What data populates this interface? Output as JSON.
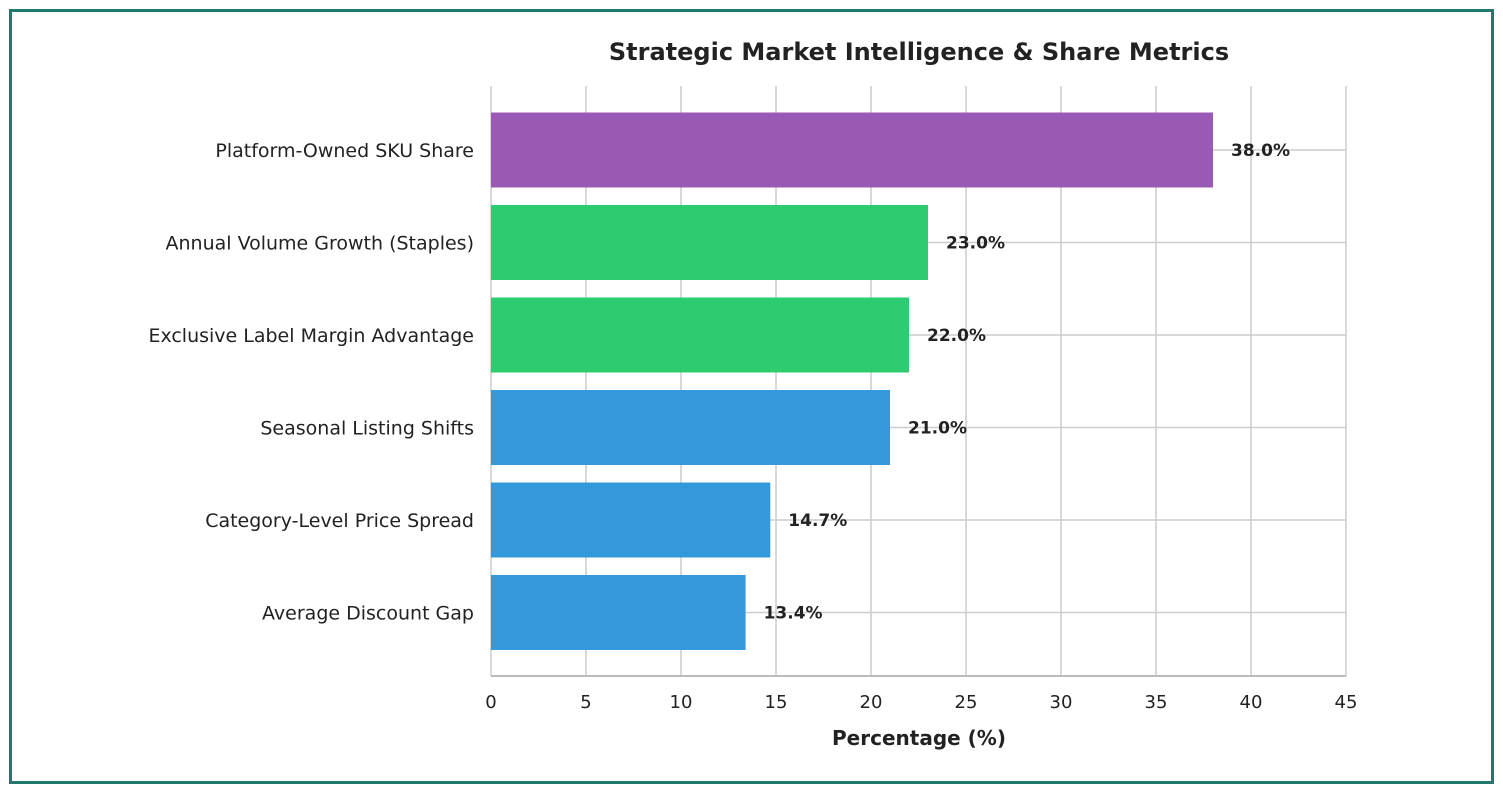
{
  "chart_data": {
    "type": "bar",
    "orientation": "horizontal",
    "title": "Strategic Market Intelligence & Share Metrics",
    "xlabel": "Percentage (%)",
    "ylabel": "",
    "xlim": [
      0,
      45
    ],
    "xticks": [
      0,
      5,
      10,
      15,
      20,
      25,
      30,
      35,
      40,
      45
    ],
    "grid": true,
    "categories": [
      "Platform-Owned SKU Share",
      "Annual Volume Growth (Staples)",
      "Exclusive Label Margin Advantage",
      "Seasonal Listing Shifts",
      "Category-Level Price Spread",
      "Average Discount Gap"
    ],
    "values": [
      38.0,
      23.0,
      22.0,
      21.0,
      14.7,
      13.4
    ],
    "value_labels": [
      "38.0%",
      "23.0%",
      "22.0%",
      "21.0%",
      "14.7%",
      "13.4%"
    ],
    "bar_colors": [
      "#9b59b6",
      "#2ecc71",
      "#2ecc71",
      "#3498db",
      "#3498db",
      "#3498db"
    ],
    "grid_color": "#cccccc",
    "frame_color": "#1f7a6d"
  }
}
